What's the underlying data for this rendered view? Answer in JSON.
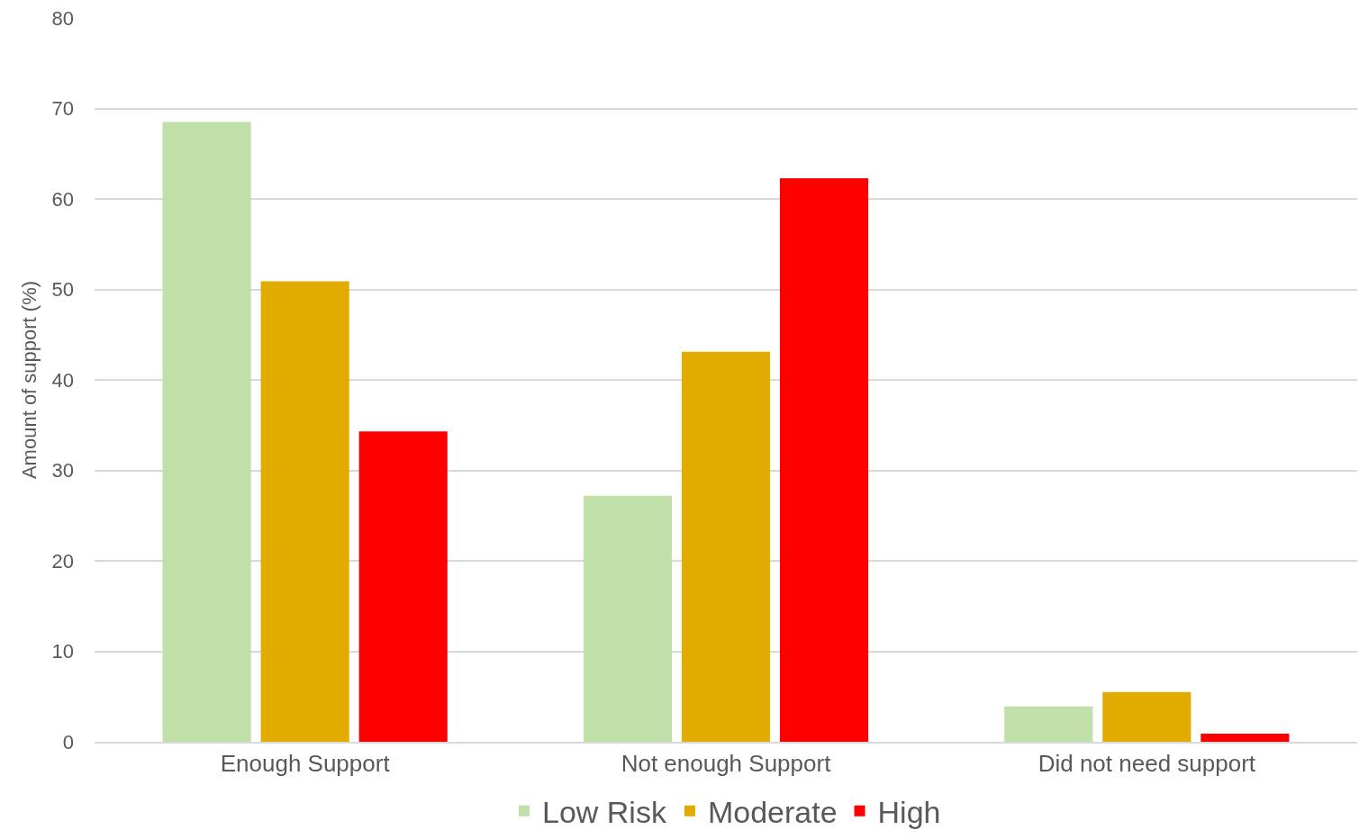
{
  "chart_data": {
    "type": "bar",
    "ylabel": "Amount of support (%)",
    "categories": [
      "Enough Support",
      "Not enough Support",
      "Did not need support"
    ],
    "series": [
      {
        "name": "Low Risk",
        "color": "#c0dfa9",
        "values": [
          68.5,
          27.2,
          3.9
        ]
      },
      {
        "name": "Moderate",
        "color": "#e1ab00",
        "values": [
          50.9,
          43.1,
          5.5
        ]
      },
      {
        "name": "High",
        "color": "#ff0000",
        "values": [
          34.3,
          62.3,
          0.9
        ]
      }
    ],
    "ylim": [
      0,
      80
    ],
    "yticks": [
      0,
      10,
      20,
      30,
      40,
      50,
      60,
      70,
      80
    ],
    "grid": "y",
    "legend": "bottom"
  }
}
